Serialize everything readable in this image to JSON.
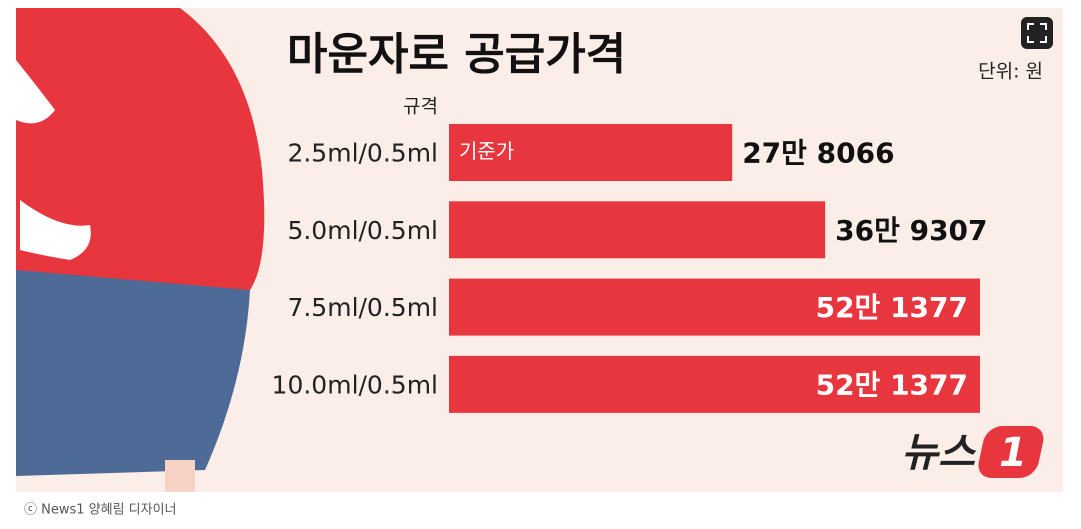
{
  "chart_data": {
    "type": "bar",
    "orientation": "horizontal",
    "title": "마운자로 공급가격",
    "unit_label": "단위: 원",
    "category_header": "규격",
    "categories": [
      "2.5ml/0.5ml",
      "5.0ml/0.5ml",
      "7.5ml/0.5ml",
      "10.0ml/0.5ml"
    ],
    "values": [
      278066,
      369307,
      521377,
      521377
    ],
    "value_labels": [
      "27만 8066",
      "36만 9307",
      "52만 1377",
      "52만 1377"
    ],
    "value_label_inside": [
      false,
      false,
      true,
      true
    ],
    "color": "#e8363f",
    "annotation": "기준가"
  },
  "logo_text": "뉴스",
  "logo_mark": "1",
  "caption": "ⓒ News1 양혜림 디자이너"
}
